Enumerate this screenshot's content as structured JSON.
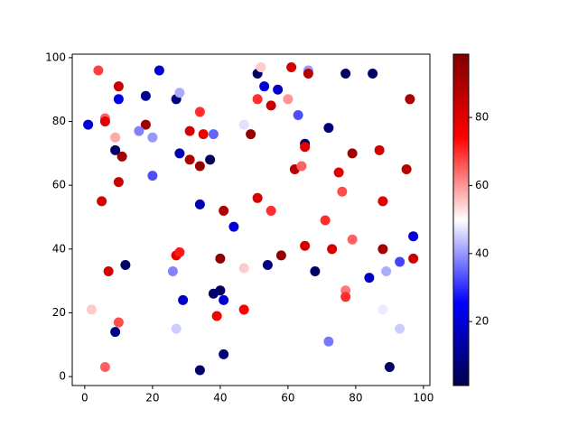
{
  "chart_data": {
    "type": "scatter",
    "x": [
      1,
      4,
      6,
      6,
      9,
      9,
      10,
      10,
      11,
      10,
      5,
      7,
      12,
      2,
      10,
      9,
      6,
      18,
      18,
      16,
      20,
      22,
      20,
      27,
      28,
      31,
      34,
      35,
      38,
      28,
      31,
      34,
      37,
      34,
      41,
      44,
      27,
      28,
      26,
      29,
      27,
      38,
      40,
      41,
      40,
      39,
      34,
      41,
      47,
      49,
      51,
      52,
      53,
      57,
      51,
      55,
      61,
      60,
      66,
      66,
      63,
      65,
      65,
      62,
      64,
      51,
      55,
      47,
      54,
      58,
      47,
      65,
      68,
      72,
      77,
      85,
      75,
      79,
      76,
      71,
      73,
      79,
      77,
      77,
      72,
      84,
      87,
      88,
      88,
      89,
      88,
      93,
      95,
      96,
      97,
      97,
      93,
      90
    ],
    "y": [
      79,
      96,
      81,
      80,
      71,
      75,
      91,
      87,
      69,
      61,
      55,
      33,
      35,
      21,
      17,
      14,
      3,
      88,
      79,
      77,
      75,
      96,
      63,
      87,
      89,
      77,
      83,
      76,
      76,
      70,
      68,
      66,
      68,
      54,
      52,
      47,
      38,
      39,
      33,
      24,
      15,
      26,
      27,
      24,
      37,
      19,
      2,
      7,
      79,
      76,
      95,
      97,
      91,
      90,
      87,
      85,
      97,
      87,
      96,
      95,
      82,
      73,
      72,
      65,
      66,
      56,
      52,
      34,
      35,
      38,
      21,
      41,
      33,
      78,
      95,
      95,
      64,
      70,
      58,
      49,
      40,
      43,
      27,
      25,
      11,
      31,
      71,
      55,
      40,
      33,
      21,
      36,
      65,
      87,
      44,
      37,
      15,
      3
    ],
    "c": [
      20,
      68,
      65,
      80,
      5,
      58,
      85,
      22,
      92,
      85,
      82,
      82,
      5,
      55,
      67,
      8,
      65,
      10,
      93,
      38,
      40,
      20,
      33,
      8,
      42,
      82,
      70,
      78,
      35,
      15,
      90,
      94,
      3,
      15,
      90,
      20,
      78,
      72,
      38,
      18,
      45,
      5,
      5,
      20,
      95,
      76,
      5,
      7,
      47,
      95,
      5,
      55,
      20,
      18,
      70,
      85,
      82,
      60,
      40,
      88,
      33,
      3,
      80,
      88,
      65,
      82,
      70,
      55,
      8,
      95,
      75,
      82,
      5,
      8,
      4,
      5,
      80,
      92,
      67,
      70,
      82,
      65,
      63,
      70,
      37,
      18,
      82,
      80,
      92,
      42,
      48,
      32,
      88,
      90,
      20,
      85,
      45,
      4
    ],
    "colormap": [
      "#00004c",
      "#0000ff",
      "#ffffff",
      "#ff0000",
      "#800000"
    ],
    "xlim": [
      -3.7,
      101.9
    ],
    "xticks": [
      0,
      20,
      40,
      60,
      80,
      100
    ],
    "ylim": [
      -2.8,
      101.1
    ],
    "yticks": [
      0,
      20,
      40,
      60,
      80,
      100
    ],
    "clim": [
      1.2,
      98.6
    ],
    "cticks": [
      20,
      40,
      60,
      80
    ]
  }
}
